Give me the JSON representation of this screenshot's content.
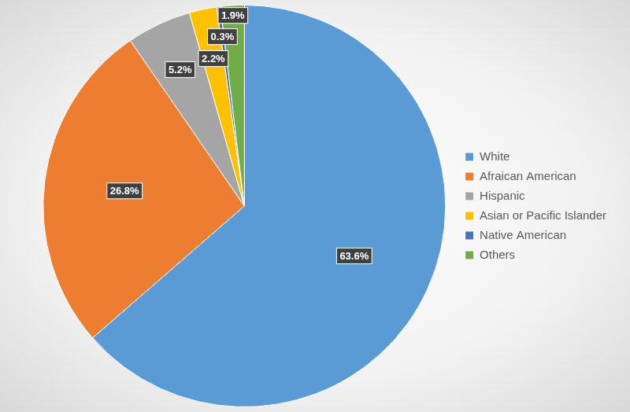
{
  "chart_data": {
    "type": "pie",
    "categories": [
      "White",
      "Afraican American",
      "Hispanic",
      "Asian or Pacific Islander",
      "Native American",
      "Others"
    ],
    "values": [
      63.6,
      26.8,
      5.2,
      2.2,
      0.3,
      1.9
    ],
    "value_labels": [
      "63.6%",
      "26.8%",
      "5.2%",
      "2.2%",
      "0.3%",
      "1.9%"
    ],
    "colors": [
      "#5b9bd5",
      "#ed7d31",
      "#a5a5a5",
      "#ffc000",
      "#4472c4",
      "#70ad47"
    ],
    "legend": "right",
    "data_labels": true
  }
}
